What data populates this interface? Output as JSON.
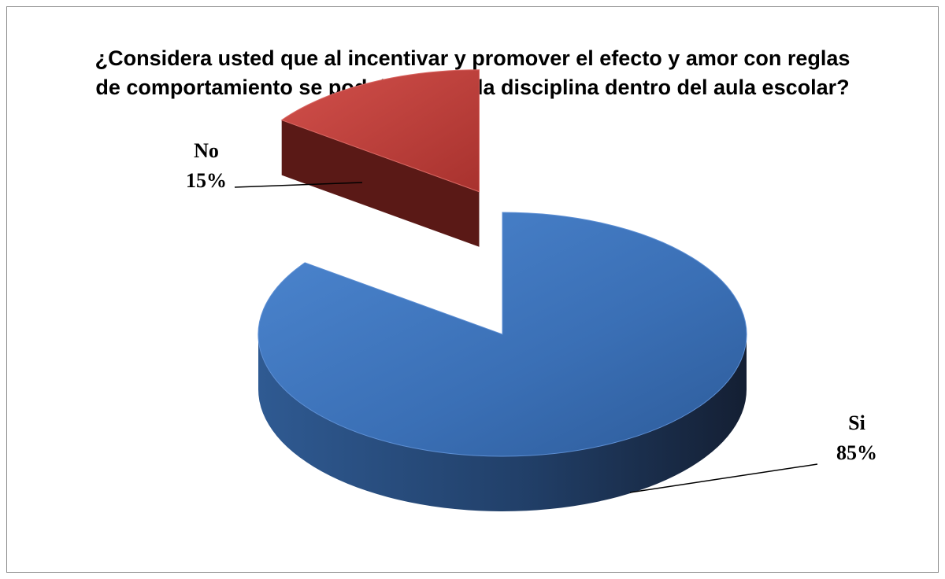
{
  "chart_data": {
    "type": "pie",
    "title": "¿Considera usted que al incentivar y promover el efecto y amor con reglas de comportamiento se podrá mejorar la disciplina dentro del aula escolar?",
    "categories": [
      "Si",
      "No"
    ],
    "values": [
      85,
      15
    ],
    "labels": [
      {
        "category": "Si",
        "percent": "85%"
      },
      {
        "category": "No",
        "percent": "15%"
      }
    ],
    "colors": [
      "#3a6fb5",
      "#c0403c"
    ],
    "style": "3d-exploded",
    "legend": "none"
  }
}
